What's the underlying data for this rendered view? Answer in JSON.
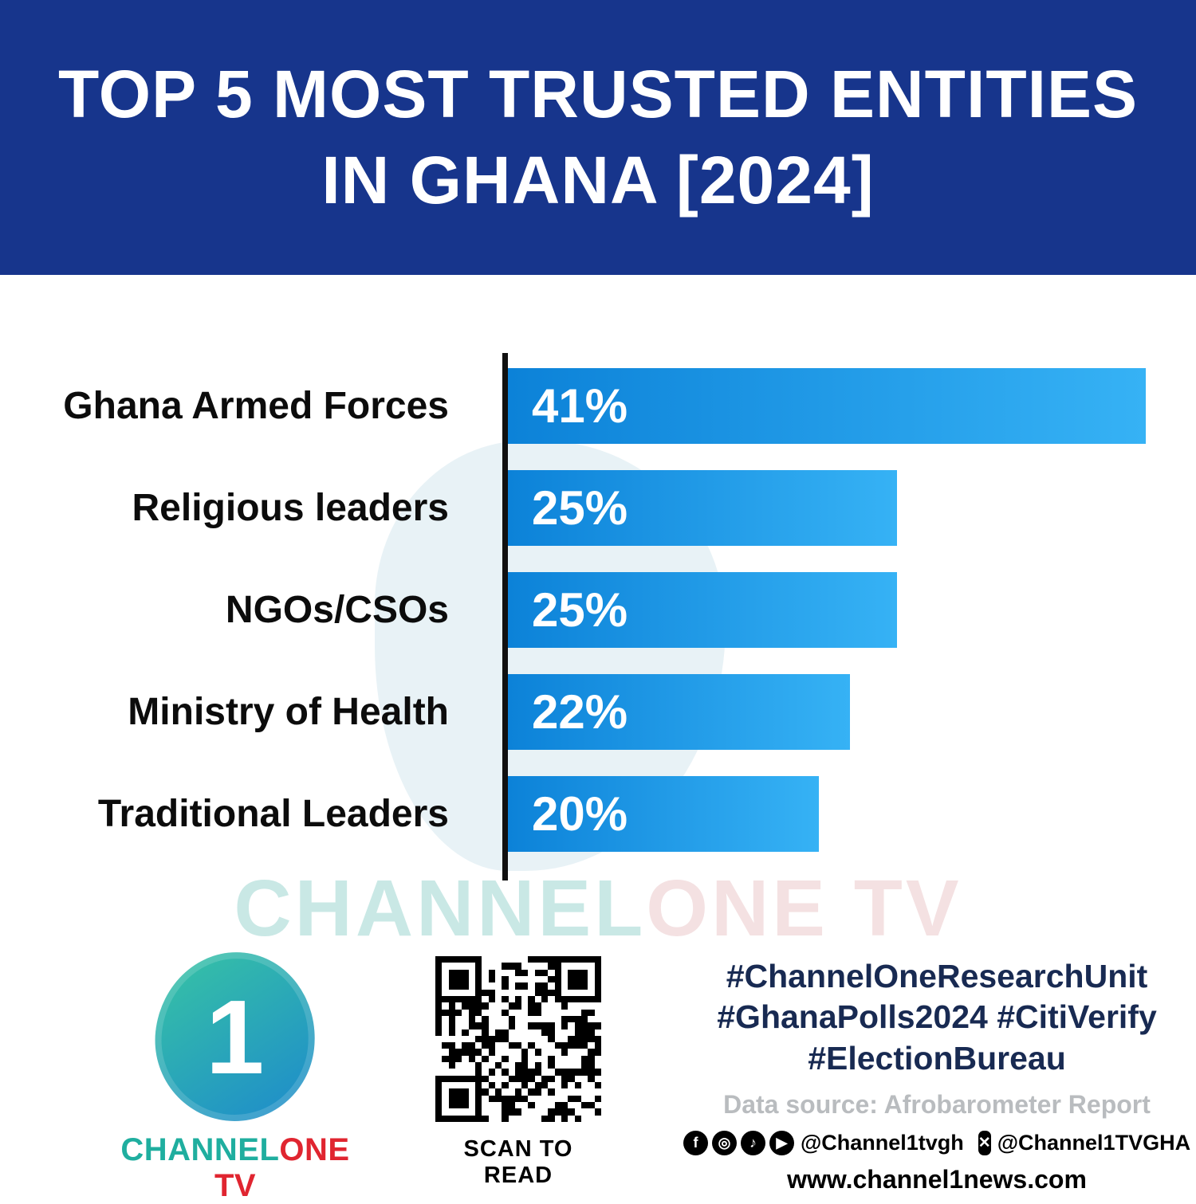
{
  "header": {
    "title_line1": "TOP 5 MOST TRUSTED ENTITIES",
    "title_line2": "IN GHANA [2024]"
  },
  "chart_data": {
    "type": "bar",
    "orientation": "horizontal",
    "title": "Top 5 Most Trusted Entities in Ghana [2024]",
    "categories": [
      "Ghana Armed Forces",
      "Religious leaders",
      "NGOs/CSOs",
      "Ministry of Health",
      "Traditional Leaders"
    ],
    "values": [
      41,
      25,
      25,
      22,
      20
    ],
    "value_labels": [
      "41%",
      "25%",
      "25%",
      "22%",
      "20%"
    ],
    "xlabel": "",
    "ylabel": "",
    "xlim": [
      0,
      41
    ],
    "grid": false,
    "legend": false
  },
  "watermark": {
    "part1": "CHANNEL",
    "part2": "ONE TV"
  },
  "footer": {
    "logo": {
      "numeral": "1",
      "part1": "CHANNEL",
      "part2": "ONE TV"
    },
    "qr_caption": "SCAN TO READ",
    "hashtags_line1": "#ChannelOneResearchUnit",
    "hashtags_line2": "#GhanaPolls2024 #CitiVerify",
    "hashtags_line3": "#ElectionBureau",
    "data_source": "Data source: Afrobarometer Report",
    "social": {
      "icons": [
        {
          "name": "facebook-icon",
          "glyph": "f"
        },
        {
          "name": "instagram-icon",
          "glyph": "◎"
        },
        {
          "name": "tiktok-icon",
          "glyph": "♪"
        },
        {
          "name": "youtube-icon",
          "glyph": "▶"
        }
      ],
      "handle1": "@Channel1tvgh",
      "x_glyph": "✕",
      "handle2": "@Channel1TVGHA"
    },
    "website": "www.channel1news.com"
  },
  "colors": {
    "header_bg": "#17358c",
    "bar_start": "#0c82d8",
    "bar_end": "#36b2f5",
    "hashtag_color": "#182a52",
    "brand_teal": "#1fae9f",
    "brand_red": "#e02530",
    "axis_color": "#101010"
  }
}
